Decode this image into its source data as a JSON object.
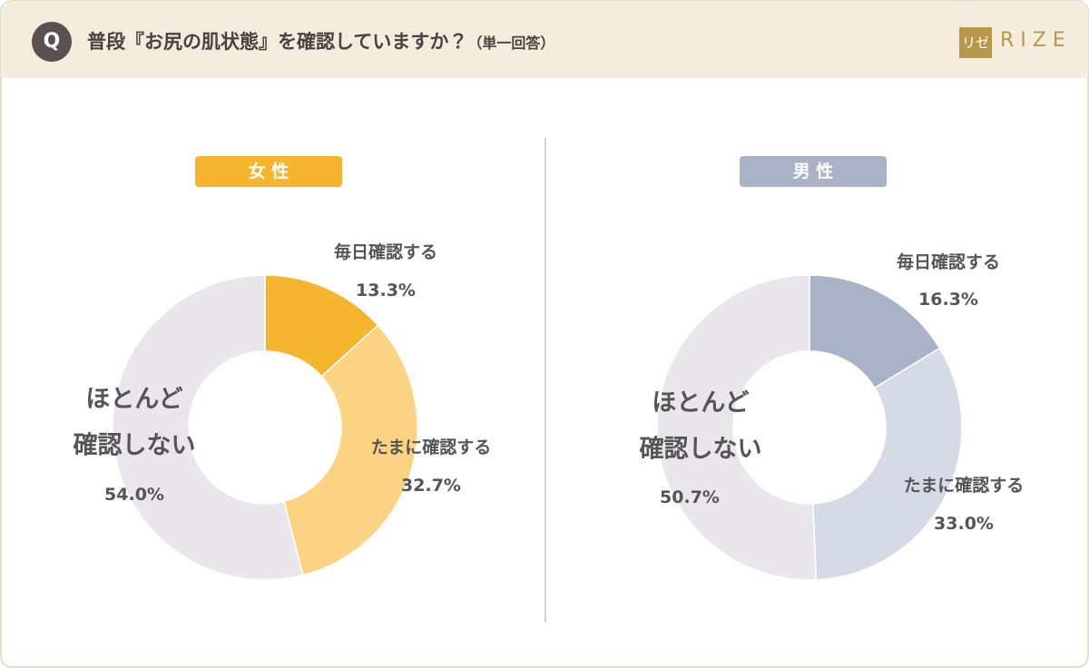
{
  "header": {
    "badge": "Q",
    "title": "普段『お尻の肌状態』を確認していますか？",
    "note": "（単一回答）",
    "logo_mark": "リゼ",
    "logo_text": "RIZE"
  },
  "chart_data": [
    {
      "type": "donut",
      "title": "女 性",
      "title_color": "#f5b52e",
      "categories": [
        "毎日確認する",
        "たまに確認する",
        "ほとんど\n確認しない"
      ],
      "values": [
        13.3,
        32.7,
        54.0
      ],
      "value_labels": [
        "13.3%",
        "32.7%",
        "54.0%"
      ],
      "colors": [
        "#f5b52e",
        "#fcd283",
        "#e9e7ec"
      ]
    },
    {
      "type": "donut",
      "title": "男 性",
      "title_color": "#a9b2c7",
      "categories": [
        "毎日確認する",
        "たまに確認する",
        "ほとんど\n確認しない"
      ],
      "values": [
        16.3,
        33.0,
        50.7
      ],
      "value_labels": [
        "16.3%",
        "33.0%",
        "50.7%"
      ],
      "colors": [
        "#a9b2c7",
        "#d6dae6",
        "#e9e7ec"
      ]
    }
  ]
}
